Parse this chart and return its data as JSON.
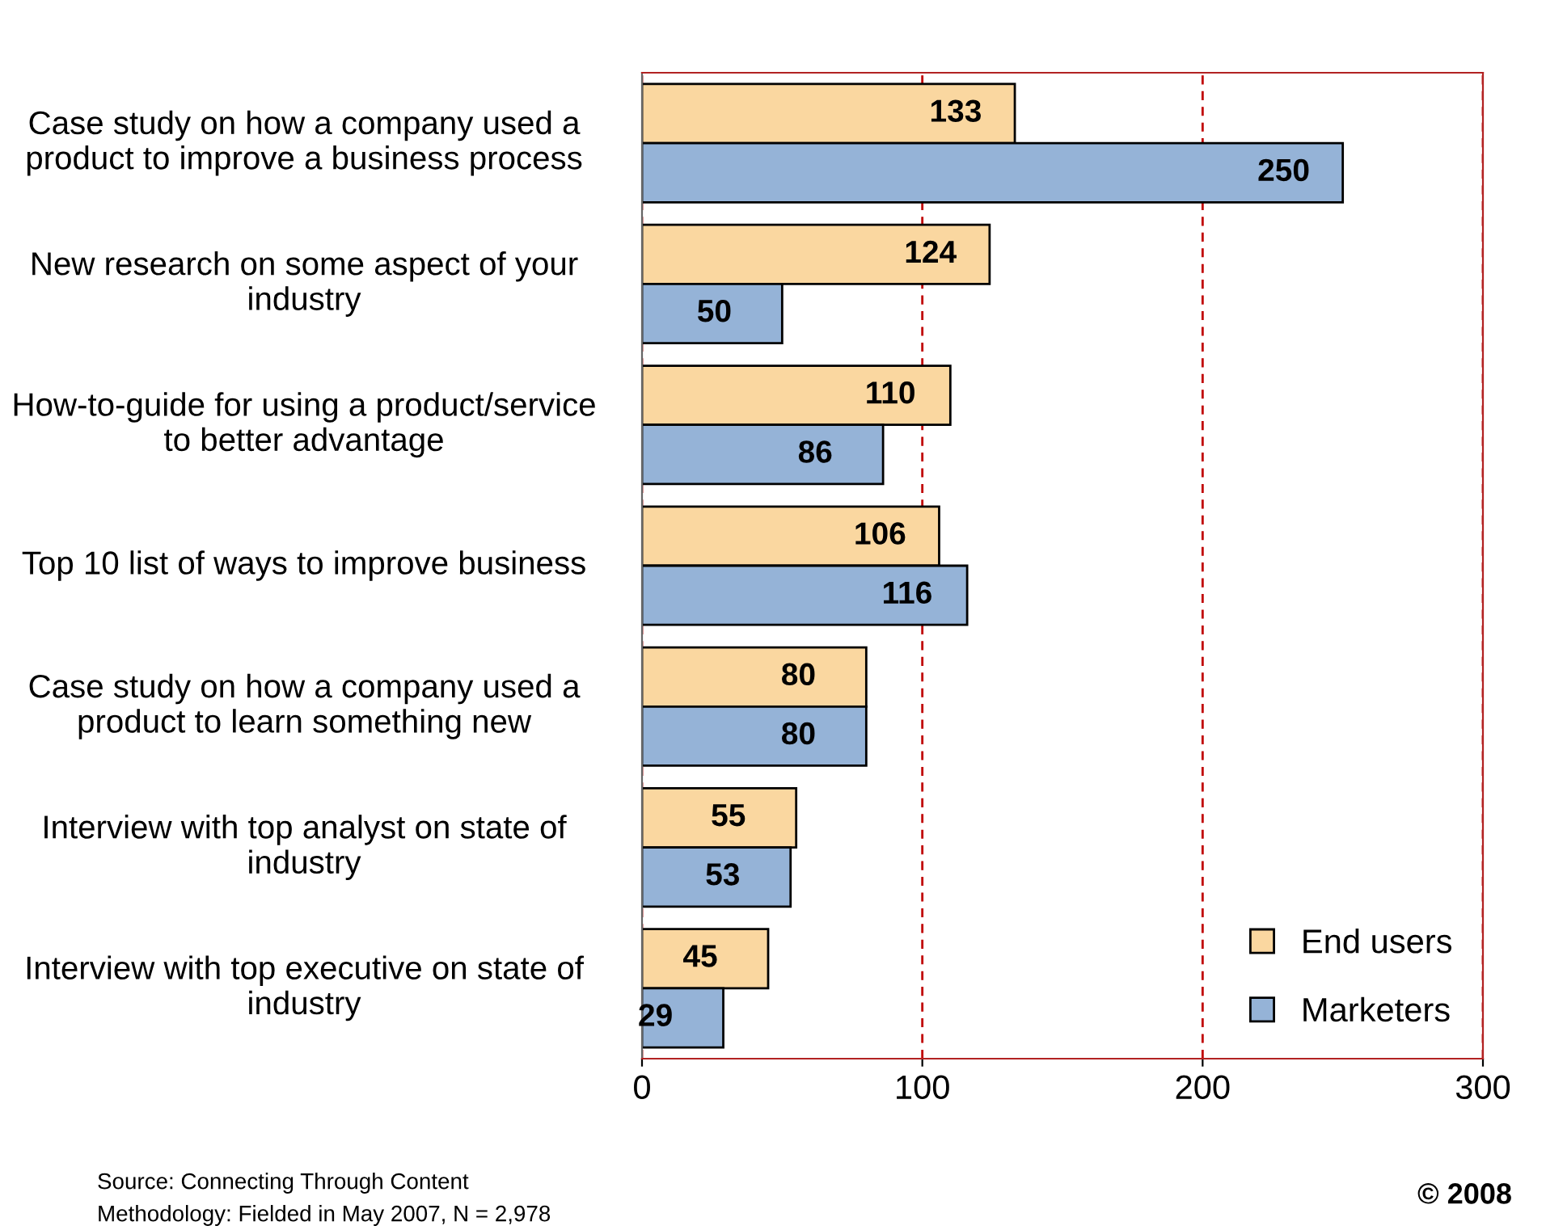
{
  "chart_data": {
    "type": "bar",
    "orientation": "horizontal",
    "categories": [
      "Case study on how a company used a product to improve a business process",
      "New research on some aspect of your industry",
      "How-to-guide for using a product/service to better advantage",
      "Top 10 list of ways to improve business",
      "Case study on how a company used a product to learn something new",
      "Interview with top analyst on state of industry",
      "Interview with top executive on state of industry"
    ],
    "series": [
      {
        "name": "End users",
        "color": "#fad7a0",
        "values": [
          133,
          124,
          110,
          106,
          80,
          55,
          45
        ]
      },
      {
        "name": "Marketers",
        "color": "#95b3d7",
        "values": [
          250,
          50,
          86,
          116,
          80,
          53,
          29
        ]
      }
    ],
    "xlim": [
      0,
      300
    ],
    "xticks": [
      0,
      100,
      200,
      300
    ],
    "grid": "x",
    "legend": "bottom right",
    "data_labels": true,
    "annotations": [
      "Source: Connecting Through Content",
      "Methodology: Fielded in May 2007, N = 2,978",
      "© 2008"
    ]
  }
}
